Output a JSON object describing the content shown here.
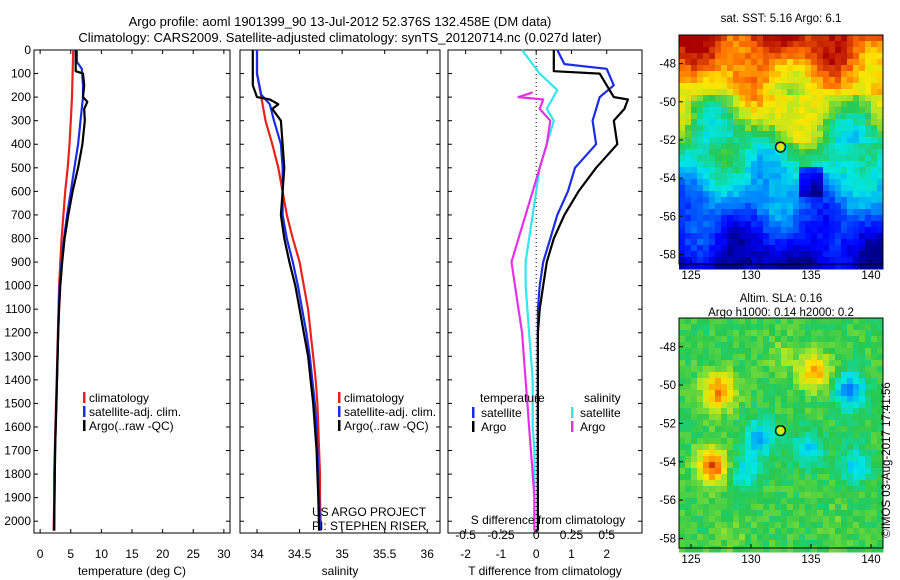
{
  "header": {
    "line1": "Argo profile: aoml 1901399_90 13-Jul-2012 52.376S 132.458E (DM data)",
    "line2": "Climatology: CARS2009. Satellite-adjusted climatology: synTS_20120714.nc (0.027d later)"
  },
  "colors": {
    "climatology": "#e8221b",
    "satellite": "#1a2ce8",
    "argo": "#000000",
    "cyan": "#33e5ee",
    "magenta": "#e631e6"
  },
  "chart_data": [
    {
      "type": "line",
      "id": "temperature",
      "xlabel": "temperature (deg C)",
      "xlim": [
        -1,
        31
      ],
      "ylim": [
        2050,
        0
      ],
      "xticks": [
        0,
        5,
        10,
        15,
        20,
        25,
        30
      ],
      "yticks": [
        0,
        100,
        200,
        300,
        400,
        500,
        600,
        700,
        800,
        900,
        1000,
        1100,
        1200,
        1300,
        1400,
        1500,
        1600,
        1700,
        1800,
        1900,
        2000
      ],
      "legend": [
        "climatology",
        "satellite-adj. clim.",
        "Argo(..raw -QC)"
      ],
      "series": [
        {
          "name": "climatology",
          "color": "#e8221b",
          "points": [
            [
              5.4,
              0
            ],
            [
              5.3,
              100
            ],
            [
              5.2,
              200
            ],
            [
              5,
              300
            ],
            [
              4.8,
              400
            ],
            [
              4.5,
              500
            ],
            [
              4.1,
              600
            ],
            [
              3.8,
              700
            ],
            [
              3.5,
              800
            ],
            [
              3.3,
              900
            ],
            [
              3.1,
              1000
            ],
            [
              3,
              1100
            ],
            [
              2.9,
              1200
            ],
            [
              2.8,
              1300
            ],
            [
              2.7,
              1400
            ],
            [
              2.6,
              1500
            ],
            [
              2.5,
              1600
            ],
            [
              2.4,
              1700
            ],
            [
              2.3,
              1800
            ],
            [
              2.3,
              1900
            ],
            [
              2.2,
              2040
            ]
          ]
        },
        {
          "name": "satellite-adj. clim.",
          "color": "#1a2ce8",
          "points": [
            [
              6,
              0
            ],
            [
              6,
              50
            ],
            [
              6.8,
              80
            ],
            [
              7,
              150
            ],
            [
              7,
              200
            ],
            [
              6.6,
              300
            ],
            [
              6.2,
              400
            ],
            [
              5.6,
              500
            ],
            [
              5,
              600
            ],
            [
              4.4,
              700
            ],
            [
              3.9,
              800
            ],
            [
              3.5,
              900
            ],
            [
              3.2,
              1000
            ],
            [
              3.05,
              1100
            ],
            [
              2.95,
              1200
            ],
            [
              2.85,
              1300
            ],
            [
              2.75,
              1400
            ],
            [
              2.65,
              1500
            ],
            [
              2.55,
              1600
            ],
            [
              2.45,
              1700
            ],
            [
              2.4,
              1800
            ],
            [
              2.35,
              1900
            ],
            [
              2.3,
              2040
            ]
          ]
        },
        {
          "name": "Argo(..raw -QC)",
          "color": "#000000",
          "points": [
            [
              5.8,
              0
            ],
            [
              5.8,
              90
            ],
            [
              7,
              100
            ],
            [
              7.2,
              150
            ],
            [
              7,
              200
            ],
            [
              7.7,
              220
            ],
            [
              7.2,
              250
            ],
            [
              7.3,
              300
            ],
            [
              6.9,
              400
            ],
            [
              6.2,
              500
            ],
            [
              5.3,
              600
            ],
            [
              4.6,
              700
            ],
            [
              4,
              800
            ],
            [
              3.6,
              900
            ],
            [
              3.3,
              1000
            ],
            [
              3.1,
              1100
            ],
            [
              2.95,
              1200
            ],
            [
              2.85,
              1300
            ],
            [
              2.75,
              1400
            ],
            [
              2.65,
              1500
            ],
            [
              2.55,
              1600
            ],
            [
              2.45,
              1700
            ],
            [
              2.4,
              1800
            ],
            [
              2.35,
              1900
            ],
            [
              2.3,
              2040
            ]
          ]
        }
      ]
    },
    {
      "type": "line",
      "id": "salinity",
      "xlabel": "salinity",
      "xlim": [
        33.8,
        36.15
      ],
      "ylim": [
        2050,
        0
      ],
      "xticks": [
        34,
        34.5,
        35,
        35.5,
        36
      ],
      "legend": [
        "climatology",
        "satellite-adj. clim.",
        "Argo(..raw -QC)"
      ],
      "annotations": [
        "US ARGO PROJECT",
        "PI: STEPHEN RISER"
      ],
      "series": [
        {
          "name": "climatology",
          "color": "#e8221b",
          "points": [
            [
              34.0,
              0
            ],
            [
              34.0,
              100
            ],
            [
              34.05,
              200
            ],
            [
              34.1,
              300
            ],
            [
              34.18,
              400
            ],
            [
              34.25,
              500
            ],
            [
              34.3,
              600
            ],
            [
              34.35,
              700
            ],
            [
              34.42,
              800
            ],
            [
              34.5,
              900
            ],
            [
              34.55,
              1000
            ],
            [
              34.6,
              1100
            ],
            [
              34.63,
              1200
            ],
            [
              34.66,
              1300
            ],
            [
              34.69,
              1400
            ],
            [
              34.71,
              1500
            ],
            [
              34.72,
              1600
            ],
            [
              34.73,
              1700
            ],
            [
              34.74,
              1800
            ],
            [
              34.74,
              1900
            ],
            [
              34.75,
              2040
            ]
          ]
        },
        {
          "name": "satellite-adj. clim.",
          "color": "#1a2ce8",
          "points": [
            [
              34.0,
              0
            ],
            [
              34.0,
              100
            ],
            [
              34.05,
              190
            ],
            [
              34.15,
              230
            ],
            [
              34.2,
              300
            ],
            [
              34.28,
              400
            ],
            [
              34.3,
              500
            ],
            [
              34.3,
              600
            ],
            [
              34.3,
              700
            ],
            [
              34.35,
              800
            ],
            [
              34.42,
              900
            ],
            [
              34.48,
              1000
            ],
            [
              34.53,
              1100
            ],
            [
              34.58,
              1200
            ],
            [
              34.62,
              1300
            ],
            [
              34.65,
              1400
            ],
            [
              34.68,
              1500
            ],
            [
              34.7,
              1600
            ],
            [
              34.71,
              1700
            ],
            [
              34.72,
              1800
            ],
            [
              34.73,
              1900
            ],
            [
              34.74,
              2040
            ]
          ]
        },
        {
          "name": "Argo(..raw -QC)",
          "color": "#000000",
          "points": [
            [
              33.95,
              0
            ],
            [
              33.95,
              150
            ],
            [
              34.0,
              200
            ],
            [
              34.15,
              210
            ],
            [
              34.25,
              230
            ],
            [
              34.18,
              250
            ],
            [
              34.28,
              300
            ],
            [
              34.3,
              400
            ],
            [
              34.32,
              500
            ],
            [
              34.3,
              600
            ],
            [
              34.28,
              700
            ],
            [
              34.32,
              800
            ],
            [
              34.38,
              900
            ],
            [
              34.45,
              1000
            ],
            [
              34.5,
              1100
            ],
            [
              34.55,
              1200
            ],
            [
              34.6,
              1300
            ],
            [
              34.63,
              1400
            ],
            [
              34.66,
              1500
            ],
            [
              34.68,
              1600
            ],
            [
              34.7,
              1700
            ],
            [
              34.71,
              1800
            ],
            [
              34.72,
              1900
            ],
            [
              34.73,
              2040
            ]
          ]
        }
      ]
    },
    {
      "type": "line",
      "id": "difference",
      "xlabel": "T difference from climatology",
      "xlabel_top": "S difference from climatology",
      "xlim": [
        -2.5,
        3
      ],
      "ylim": [
        2050,
        0
      ],
      "xticks": [
        -2,
        -1,
        0,
        1,
        2
      ],
      "xticks_s": [
        "-0.5",
        "-0.25",
        "0",
        "0.25",
        "0.5"
      ],
      "legend_groups": [
        {
          "title": "temperature",
          "items": [
            "satellite",
            "Argo"
          ]
        },
        {
          "title": "salinity",
          "items": [
            "satellite",
            "Argo"
          ]
        }
      ],
      "series": [
        {
          "name": "temperature satellite",
          "color": "#1a2ce8",
          "points": [
            [
              0.6,
              0
            ],
            [
              0.8,
              60
            ],
            [
              2,
              80
            ],
            [
              2.2,
              150
            ],
            [
              1.8,
              200
            ],
            [
              1.6,
              300
            ],
            [
              1.7,
              400
            ],
            [
              1.1,
              500
            ],
            [
              0.9,
              600
            ],
            [
              0.6,
              700
            ],
            [
              0.4,
              800
            ],
            [
              0.2,
              900
            ],
            [
              0.1,
              1000
            ],
            [
              0.05,
              1100
            ],
            [
              0.05,
              1200
            ],
            [
              0.05,
              1300
            ],
            [
              0.05,
              1400
            ],
            [
              0.05,
              1500
            ],
            [
              0.05,
              1600
            ],
            [
              0.05,
              1700
            ],
            [
              0.05,
              1800
            ],
            [
              0.05,
              1900
            ],
            [
              0.05,
              2040
            ]
          ]
        },
        {
          "name": "temperature Argo",
          "color": "#000000",
          "points": [
            [
              0.5,
              0
            ],
            [
              0.5,
              90
            ],
            [
              1.8,
              100
            ],
            [
              2,
              150
            ],
            [
              2.2,
              200
            ],
            [
              2.6,
              210
            ],
            [
              2.5,
              250
            ],
            [
              2.2,
              300
            ],
            [
              2.3,
              400
            ],
            [
              1.7,
              500
            ],
            [
              1.2,
              600
            ],
            [
              0.8,
              700
            ],
            [
              0.5,
              800
            ],
            [
              0.3,
              900
            ],
            [
              0.2,
              1000
            ],
            [
              0.1,
              1100
            ],
            [
              0.05,
              1200
            ],
            [
              0.05,
              1300
            ],
            [
              0.05,
              1400
            ],
            [
              0.05,
              1500
            ],
            [
              0.05,
              1600
            ],
            [
              0.05,
              1700
            ],
            [
              0.05,
              1800
            ],
            [
              0.05,
              1900
            ],
            [
              0.05,
              2040
            ]
          ]
        },
        {
          "name": "salinity satellite",
          "color": "#33e5ee",
          "points": [
            [
              -0.4,
              0
            ],
            [
              0.1,
              100
            ],
            [
              0.6,
              170
            ],
            [
              0.3,
              250
            ],
            [
              0.5,
              300
            ],
            [
              0.3,
              400
            ],
            [
              0.1,
              500
            ],
            [
              0,
              600
            ],
            [
              -0.1,
              700
            ],
            [
              -0.2,
              800
            ],
            [
              -0.3,
              900
            ],
            [
              -0.3,
              1000
            ],
            [
              -0.25,
              1100
            ],
            [
              -0.2,
              1200
            ],
            [
              -0.15,
              1300
            ],
            [
              -0.1,
              1400
            ],
            [
              -0.1,
              1500
            ],
            [
              -0.1,
              1600
            ],
            [
              -0.05,
              1700
            ],
            [
              -0.05,
              1800
            ],
            [
              -0.05,
              1900
            ],
            [
              -0.05,
              2040
            ]
          ]
        },
        {
          "name": "salinity Argo",
          "color": "#e631e6",
          "points": [
            [
              -0.1,
              180
            ],
            [
              -0.5,
              200
            ],
            [
              0.2,
              210
            ],
            [
              0.1,
              250
            ],
            [
              0.4,
              300
            ],
            [
              0.3,
              400
            ],
            [
              0.1,
              500
            ],
            [
              -0.1,
              600
            ],
            [
              -0.3,
              700
            ],
            [
              -0.5,
              800
            ],
            [
              -0.7,
              900
            ],
            [
              -0.6,
              1000
            ],
            [
              -0.5,
              1100
            ],
            [
              -0.4,
              1200
            ],
            [
              -0.35,
              1300
            ],
            [
              -0.3,
              1400
            ],
            [
              -0.25,
              1500
            ],
            [
              -0.2,
              1600
            ],
            [
              -0.15,
              1700
            ],
            [
              -0.1,
              1800
            ],
            [
              -0.05,
              1900
            ],
            [
              -0.05,
              2040
            ]
          ]
        }
      ]
    },
    {
      "type": "heatmap",
      "id": "sst-map",
      "title": "sat. SST: 5.16 Argo: 6.1",
      "xlim": [
        124,
        141
      ],
      "ylim": [
        -58.5,
        -46.5
      ],
      "xticks": [
        125,
        130,
        135,
        140
      ],
      "yticks": [
        -48,
        -50,
        -52,
        -54,
        -56,
        -58
      ],
      "marker": {
        "lon": 132.458,
        "lat": -52.376
      }
    },
    {
      "type": "heatmap",
      "id": "sla-map",
      "title": "Altim. SLA: 0.16",
      "subtitle": "Argo h1000: 0.14 h2000: 0.2",
      "xlim": [
        124,
        141
      ],
      "ylim": [
        -58.5,
        -46.5
      ],
      "xticks": [
        125,
        130,
        135,
        140
      ],
      "yticks": [
        -48,
        -50,
        -52,
        -54,
        -56,
        -58
      ],
      "marker": {
        "lon": 132.458,
        "lat": -52.376
      }
    }
  ],
  "watermark": "©IMOS 03-Aug-2017 17:41:56"
}
